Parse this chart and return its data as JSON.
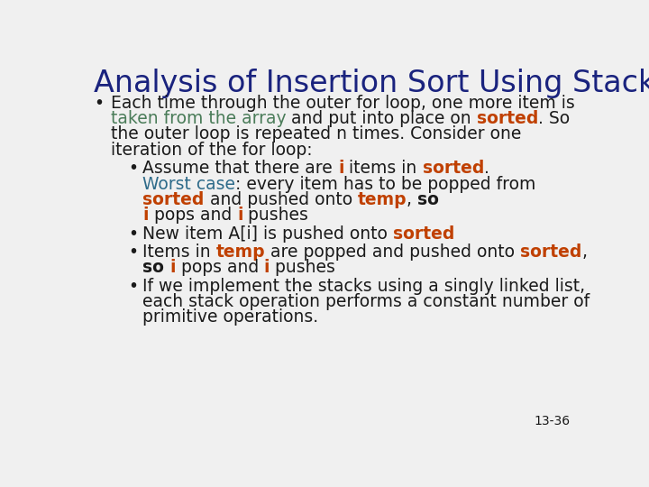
{
  "title": "Analysis of Insertion Sort Using Stacks",
  "title_color": "#1a237e",
  "bg_color": "#f0f0f0",
  "black": "#1a1a1a",
  "green": "#4a7c59",
  "orange": "#c04000",
  "teal": "#2e6b8a",
  "page_num": "13-36",
  "lines": [
    {
      "indent": 0,
      "bullet": true,
      "parts": [
        {
          "text": "Each time through the outer for loop, one more item is",
          "color": "#1a1a1a",
          "bold": false
        }
      ]
    },
    {
      "indent": 0,
      "bullet": false,
      "parts": [
        {
          "text": "taken from the array",
          "color": "#4a7c59",
          "bold": false
        },
        {
          "text": " and put into place on ",
          "color": "#1a1a1a",
          "bold": false
        },
        {
          "text": "sorted",
          "color": "#c04000",
          "bold": true
        },
        {
          "text": ". So",
          "color": "#1a1a1a",
          "bold": false
        }
      ]
    },
    {
      "indent": 0,
      "bullet": false,
      "parts": [
        {
          "text": "the outer loop is repeated n times. Consider one",
          "color": "#1a1a1a",
          "bold": false
        }
      ]
    },
    {
      "indent": 0,
      "bullet": false,
      "parts": [
        {
          "text": "iteration of the for loop:",
          "color": "#1a1a1a",
          "bold": false
        }
      ]
    },
    {
      "indent": 1,
      "bullet": true,
      "parts": [
        {
          "text": "Assume that there are ",
          "color": "#1a1a1a",
          "bold": false
        },
        {
          "text": "i",
          "color": "#c04000",
          "bold": true
        },
        {
          "text": " items in ",
          "color": "#1a1a1a",
          "bold": false
        },
        {
          "text": "sorted",
          "color": "#c04000",
          "bold": true
        },
        {
          "text": ".",
          "color": "#1a1a1a",
          "bold": false
        }
      ]
    },
    {
      "indent": 1,
      "bullet": false,
      "parts": [
        {
          "text": "Worst case",
          "color": "#2e6b8a",
          "bold": false
        },
        {
          "text": ": every item has to be popped from",
          "color": "#1a1a1a",
          "bold": false
        }
      ]
    },
    {
      "indent": 1,
      "bullet": false,
      "parts": [
        {
          "text": "sorted",
          "color": "#c04000",
          "bold": true
        },
        {
          "text": " and pushed onto ",
          "color": "#1a1a1a",
          "bold": false
        },
        {
          "text": "temp",
          "color": "#c04000",
          "bold": true
        },
        {
          "text": ", ",
          "color": "#1a1a1a",
          "bold": false
        },
        {
          "text": "so",
          "color": "#1a1a1a",
          "bold": true
        }
      ]
    },
    {
      "indent": 1,
      "bullet": false,
      "parts": [
        {
          "text": "i",
          "color": "#c04000",
          "bold": true
        },
        {
          "text": " pops and ",
          "color": "#1a1a1a",
          "bold": false
        },
        {
          "text": "i",
          "color": "#c04000",
          "bold": true
        },
        {
          "text": " pushes",
          "color": "#1a1a1a",
          "bold": false
        }
      ]
    },
    {
      "indent": 1,
      "bullet": true,
      "parts": [
        {
          "text": "New item A[i] is pushed onto ",
          "color": "#1a1a1a",
          "bold": false
        },
        {
          "text": "sorted",
          "color": "#c04000",
          "bold": true
        }
      ]
    },
    {
      "indent": 1,
      "bullet": true,
      "parts": [
        {
          "text": "Items in ",
          "color": "#1a1a1a",
          "bold": false
        },
        {
          "text": "temp",
          "color": "#c04000",
          "bold": true
        },
        {
          "text": " are popped and pushed onto ",
          "color": "#1a1a1a",
          "bold": false
        },
        {
          "text": "sorted",
          "color": "#c04000",
          "bold": true
        },
        {
          "text": ",",
          "color": "#1a1a1a",
          "bold": false
        }
      ]
    },
    {
      "indent": 1,
      "bullet": false,
      "parts": [
        {
          "text": "so",
          "color": "#1a1a1a",
          "bold": true
        },
        {
          "text": " ",
          "color": "#1a1a1a",
          "bold": false
        },
        {
          "text": "i",
          "color": "#c04000",
          "bold": true
        },
        {
          "text": " pops and ",
          "color": "#1a1a1a",
          "bold": false
        },
        {
          "text": "i",
          "color": "#c04000",
          "bold": true
        },
        {
          "text": " pushes",
          "color": "#1a1a1a",
          "bold": false
        }
      ]
    },
    {
      "indent": 1,
      "bullet": true,
      "parts": [
        {
          "text": "If we implement the stacks using a singly linked list,",
          "color": "#1a1a1a",
          "bold": false
        }
      ]
    },
    {
      "indent": 1,
      "bullet": false,
      "parts": [
        {
          "text": "each stack operation performs a constant number of",
          "color": "#1a1a1a",
          "bold": false
        }
      ]
    },
    {
      "indent": 1,
      "bullet": false,
      "parts": [
        {
          "text": "primitive operations.",
          "color": "#1a1a1a",
          "bold": false
        }
      ]
    }
  ]
}
